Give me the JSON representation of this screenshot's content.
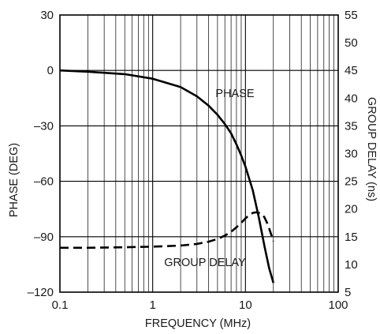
{
  "chart_data": {
    "type": "line",
    "title": "",
    "xlabel": "FREQUENCY (MHz)",
    "ylabel": "PHASE (DEG)",
    "y2label": "GROUP DELAY (ns)",
    "x_scale": "log",
    "xlim": [
      0.1,
      100
    ],
    "ylim": [
      -120,
      30
    ],
    "y2lim": [
      5,
      55
    ],
    "grid": true,
    "x_tick_labels": [
      "0.1",
      "1",
      "10",
      "100"
    ],
    "y_tick_labels": [
      "30",
      "0",
      "–30",
      "–60",
      "–90",
      "–120"
    ],
    "y2_tick_labels": [
      "55",
      "50",
      "45",
      "40",
      "35",
      "30",
      "25",
      "20",
      "15",
      "10",
      "5"
    ],
    "series": [
      {
        "name": "PHASE",
        "axis": "left",
        "style": "solid",
        "color": "#000000",
        "x": [
          0.1,
          0.2,
          0.5,
          1,
          2,
          3,
          4,
          5,
          6,
          7,
          8,
          9,
          10,
          12,
          14,
          16,
          18,
          20
        ],
        "y": [
          0,
          -0.7,
          -2,
          -4.5,
          -9,
          -14,
          -19,
          -24,
          -29,
          -34,
          -40,
          -46,
          -52,
          -65,
          -80,
          -95,
          -107,
          -115
        ]
      },
      {
        "name": "GROUP DELAY",
        "axis": "right",
        "style": "dashed",
        "color": "#000000",
        "x": [
          0.1,
          0.2,
          0.5,
          1,
          2,
          3,
          4,
          5,
          6,
          7,
          8,
          9,
          10,
          11,
          12,
          13,
          14,
          15,
          16,
          17,
          18,
          20
        ],
        "y": [
          13,
          13,
          13.1,
          13.2,
          13.4,
          13.7,
          14.1,
          14.6,
          15.2,
          15.9,
          16.7,
          17.5,
          18.3,
          18.9,
          19.3,
          19.4,
          19.3,
          19.1,
          18.5,
          17.6,
          16.5,
          14.2
        ]
      }
    ]
  }
}
